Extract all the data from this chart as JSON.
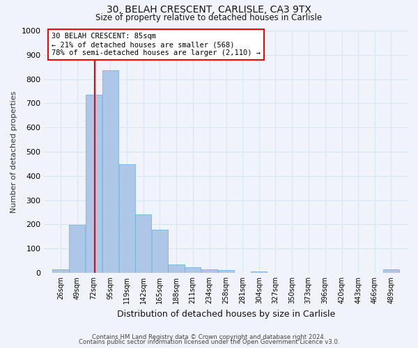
{
  "title": "30, BELAH CRESCENT, CARLISLE, CA3 9TX",
  "subtitle": "Size of property relative to detached houses in Carlisle",
  "xlabel": "Distribution of detached houses by size in Carlisle",
  "ylabel": "Number of detached properties",
  "bar_labels": [
    "26sqm",
    "49sqm",
    "72sqm",
    "95sqm",
    "119sqm",
    "142sqm",
    "165sqm",
    "188sqm",
    "211sqm",
    "234sqm",
    "258sqm",
    "281sqm",
    "304sqm",
    "327sqm",
    "350sqm",
    "373sqm",
    "396sqm",
    "420sqm",
    "443sqm",
    "466sqm",
    "489sqm"
  ],
  "bar_values": [
    15,
    197,
    735,
    835,
    447,
    240,
    178,
    35,
    22,
    14,
    10,
    0,
    5,
    0,
    0,
    0,
    0,
    0,
    0,
    0,
    14
  ],
  "bin_edges": [
    26,
    49,
    72,
    95,
    119,
    142,
    165,
    188,
    211,
    234,
    258,
    281,
    304,
    327,
    350,
    373,
    396,
    420,
    443,
    466,
    489,
    512
  ],
  "bar_color": "#aec6e8",
  "bar_edgecolor": "#6aaed6",
  "vline_x": 85,
  "vline_color": "red",
  "annotation_text": "30 BELAH CRESCENT: 85sqm\n← 21% of detached houses are smaller (568)\n78% of semi-detached houses are larger (2,110) →",
  "annotation_box_edgecolor": "red",
  "annotation_box_facecolor": "white",
  "ylim": [
    0,
    1000
  ],
  "yticks": [
    0,
    100,
    200,
    300,
    400,
    500,
    600,
    700,
    800,
    900,
    1000
  ],
  "footer_line1": "Contains HM Land Registry data © Crown copyright and database right 2024.",
  "footer_line2": "Contains public sector information licensed under the Open Government Licence v3.0.",
  "background_color": "#f0f4fa",
  "grid_color": "#d8e4f0"
}
